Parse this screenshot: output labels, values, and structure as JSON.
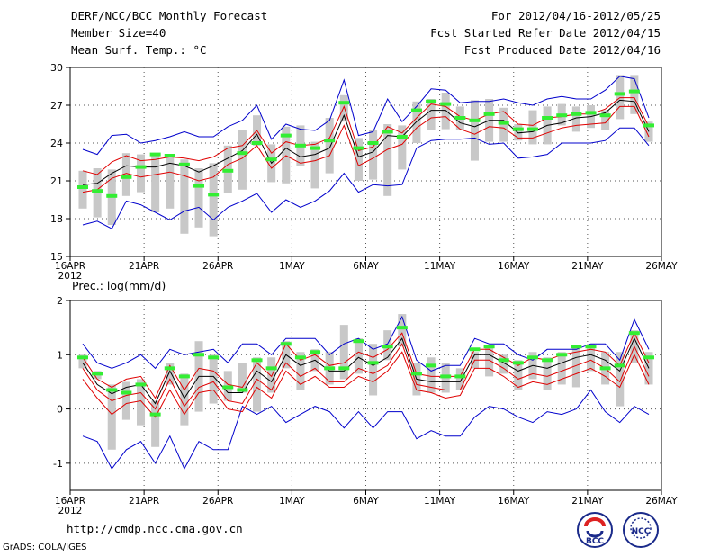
{
  "header": {
    "title": "DERF/NCC/BCC Monthly Forecast",
    "member_size": "Member Size=40",
    "variable1": "Mean Surf. Temp.: °C",
    "period": "For 2012/04/16-2012/05/25",
    "started": "Fcst Started Refer Date 2012/04/15",
    "produced": "Fcst Produced Date 2012/04/16"
  },
  "footer": {
    "url": "http://cmdp.ncc.cma.gov.cn",
    "grads": "GrADS: COLA/IGES",
    "logo_bcc": "BCC",
    "logo_ncc": "NCC"
  },
  "colors": {
    "blue": "#0000cc",
    "red": "#e00000",
    "black": "#000000",
    "green": "#33ee33",
    "box": "#c8c8c8",
    "grid": "#555555"
  },
  "chart_data": [
    {
      "type": "line",
      "title": "Mean Surf. Temp.: °C",
      "xlabel_year": "2012",
      "x_ticks": [
        "16APR",
        "21APR",
        "26APR",
        "1MAY",
        "6MAY",
        "11MAY",
        "16MAY",
        "21MAY",
        "26MAY"
      ],
      "ylim": [
        15,
        30
      ],
      "y_ticks": [
        15,
        18,
        21,
        24,
        27,
        30
      ],
      "series": [
        {
          "name": "max",
          "color": "blue",
          "values": [
            23.5,
            23.1,
            24.6,
            24.7,
            24.0,
            24.2,
            24.5,
            24.9,
            24.5,
            24.5,
            25.3,
            25.8,
            27.0,
            24.3,
            25.5,
            25.1,
            25.0,
            25.8,
            29.0,
            24.6,
            24.9,
            27.5,
            25.7,
            26.9,
            28.3,
            28.2,
            27.2,
            27.3,
            27.3,
            27.5,
            27.2,
            27.0,
            27.5,
            27.7,
            27.5,
            27.5,
            28.2,
            29.3,
            29.1,
            26.0
          ]
        },
        {
          "name": "upper",
          "color": "red",
          "values": [
            21.8,
            21.5,
            22.5,
            23.0,
            22.6,
            22.7,
            22.9,
            22.8,
            22.6,
            22.9,
            23.6,
            23.8,
            25.0,
            23.2,
            24.1,
            23.8,
            23.9,
            24.4,
            26.9,
            23.4,
            23.7,
            25.3,
            24.8,
            26.0,
            27.1,
            26.9,
            26.1,
            25.8,
            26.3,
            26.5,
            25.5,
            25.4,
            26.0,
            26.1,
            26.3,
            26.3,
            26.7,
            27.6,
            27.6,
            25.3
          ]
        },
        {
          "name": "mean",
          "color": "black",
          "values": [
            20.7,
            20.8,
            21.6,
            22.2,
            22.1,
            22.1,
            22.4,
            22.2,
            21.7,
            22.2,
            22.8,
            23.4,
            24.7,
            22.4,
            23.6,
            22.9,
            23.1,
            23.6,
            26.2,
            22.9,
            23.3,
            24.6,
            24.5,
            25.7,
            26.6,
            26.6,
            25.6,
            25.3,
            25.8,
            25.8,
            24.8,
            24.9,
            25.4,
            25.6,
            26.0,
            26.1,
            26.4,
            27.4,
            27.3,
            24.9
          ]
        },
        {
          "name": "lower",
          "color": "red",
          "values": [
            20.1,
            20.3,
            21.2,
            21.6,
            21.3,
            21.5,
            21.7,
            21.4,
            21.0,
            21.3,
            22.3,
            22.8,
            23.8,
            22.0,
            23.0,
            22.4,
            22.6,
            23.0,
            25.4,
            22.2,
            22.8,
            23.5,
            23.9,
            25.2,
            26.0,
            26.1,
            25.1,
            24.7,
            25.3,
            25.2,
            24.4,
            24.4,
            24.8,
            25.2,
            25.4,
            25.5,
            25.6,
            26.9,
            26.9,
            24.5
          ]
        },
        {
          "name": "min",
          "color": "blue",
          "values": [
            17.5,
            17.8,
            17.2,
            19.4,
            19.1,
            18.5,
            17.9,
            18.6,
            18.9,
            17.9,
            18.9,
            19.4,
            20.0,
            18.5,
            19.5,
            18.9,
            19.4,
            20.2,
            21.6,
            20.1,
            20.7,
            20.6,
            20.7,
            23.6,
            24.2,
            24.3,
            24.3,
            24.4,
            23.9,
            24.0,
            22.8,
            22.9,
            23.1,
            24.0,
            24.0,
            24.0,
            24.2,
            25.2,
            25.2,
            23.8
          ]
        }
      ],
      "box_low": [
        18.8,
        18.1,
        17.5,
        19.8,
        20.1,
        18.5,
        18.8,
        16.8,
        17.3,
        16.6,
        20.0,
        20.3,
        23.8,
        20.9,
        20.8,
        22.2,
        20.4,
        21.6,
        25.7,
        21.0,
        21.1,
        19.8,
        21.9,
        24.0,
        25.0,
        25.1,
        25.0,
        22.6,
        24.1,
        24.1,
        24.2,
        23.9,
        23.9,
        25.4,
        24.9,
        25.2,
        25.0,
        25.9,
        26.3,
        24.1
      ],
      "box_high": [
        21.8,
        22.0,
        21.9,
        23.2,
        23.1,
        23.2,
        23.0,
        22.7,
        22.0,
        22.4,
        23.8,
        25.0,
        26.2,
        23.9,
        25.3,
        25.4,
        24.1,
        26.0,
        27.8,
        24.4,
        25.0,
        25.5,
        25.4,
        27.3,
        27.5,
        28.0,
        26.9,
        27.4,
        27.5,
        26.8,
        25.5,
        26.6,
        26.9,
        27.1,
        26.9,
        27.0,
        26.6,
        29.4,
        29.4,
        25.7
      ],
      "control": [
        20.5,
        20.2,
        19.8,
        21.3,
        22.1,
        23.1,
        23.0,
        22.3,
        20.6,
        19.9,
        21.8,
        23.2,
        24.0,
        22.7,
        24.6,
        23.8,
        23.6,
        24.2,
        27.2,
        23.6,
        24.0,
        24.9,
        24.5,
        26.6,
        27.3,
        27.1,
        26.0,
        25.8,
        26.3,
        25.6,
        25.1,
        25.1,
        26.0,
        26.2,
        26.3,
        26.4,
        26.2,
        27.9,
        28.1,
        25.4
      ]
    },
    {
      "type": "line",
      "title": "Prec.: log(mm/d)",
      "xlabel_year": "2012",
      "x_ticks": [
        "16APR",
        "21APR",
        "26APR",
        "1MAY",
        "6MAY",
        "11MAY",
        "16MAY",
        "21MAY",
        "26MAY"
      ],
      "ylim": [
        -1.5,
        2.0
      ],
      "y_ticks": [
        -1,
        0,
        1,
        2
      ],
      "series": [
        {
          "name": "max",
          "color": "blue",
          "values": [
            1.2,
            0.85,
            0.75,
            0.85,
            1.0,
            0.75,
            1.1,
            1.0,
            1.05,
            1.1,
            0.85,
            1.2,
            1.2,
            1.0,
            1.3,
            1.3,
            1.3,
            1.0,
            1.2,
            1.3,
            1.1,
            1.2,
            1.7,
            0.9,
            0.7,
            0.8,
            0.8,
            1.3,
            1.2,
            1.2,
            1.0,
            0.9,
            1.1,
            1.1,
            1.1,
            1.2,
            1.2,
            0.9,
            1.65,
            1.1
          ]
        },
        {
          "name": "upper",
          "color": "red",
          "values": [
            0.95,
            0.55,
            0.4,
            0.55,
            0.6,
            0.2,
            0.8,
            0.35,
            0.75,
            0.7,
            0.45,
            0.4,
            0.85,
            0.6,
            1.2,
            0.9,
            1.0,
            0.8,
            0.85,
            1.05,
            0.95,
            1.1,
            1.4,
            0.65,
            0.6,
            0.6,
            0.6,
            1.1,
            1.1,
            0.95,
            0.8,
            0.95,
            0.9,
            1.0,
            1.05,
            1.1,
            1.05,
            0.8,
            1.4,
            0.85
          ]
        },
        {
          "name": "mean",
          "color": "black",
          "values": [
            0.85,
            0.45,
            0.28,
            0.4,
            0.45,
            0.1,
            0.7,
            0.2,
            0.6,
            0.6,
            0.3,
            0.3,
            0.7,
            0.5,
            1.0,
            0.8,
            0.9,
            0.7,
            0.7,
            0.95,
            0.8,
            0.95,
            1.3,
            0.55,
            0.5,
            0.5,
            0.5,
            1.0,
            1.0,
            0.85,
            0.7,
            0.8,
            0.75,
            0.85,
            0.95,
            1.0,
            0.9,
            0.7,
            1.3,
            0.75
          ]
        },
        {
          "name": "lower",
          "color": "red",
          "values": [
            0.75,
            0.35,
            0.15,
            0.25,
            0.3,
            0.0,
            0.55,
            0.05,
            0.4,
            0.5,
            0.15,
            0.1,
            0.55,
            0.35,
            0.85,
            0.6,
            0.75,
            0.5,
            0.5,
            0.75,
            0.65,
            0.8,
            1.2,
            0.45,
            0.4,
            0.35,
            0.35,
            0.9,
            0.9,
            0.75,
            0.55,
            0.65,
            0.6,
            0.7,
            0.8,
            0.9,
            0.75,
            0.5,
            1.15,
            0.6
          ]
        },
        {
          "name": "min",
          "color": "blue",
          "values": [
            -0.5,
            -0.6,
            -1.1,
            -0.75,
            -0.6,
            -1.0,
            -0.5,
            -1.1,
            -0.6,
            -0.75,
            -0.75,
            0.05,
            -0.1,
            0.05,
            -0.25,
            -0.1,
            0.05,
            -0.05,
            -0.35,
            -0.05,
            -0.35,
            -0.05,
            -0.05,
            -0.55,
            -0.4,
            -0.5,
            -0.5,
            -0.15,
            0.05,
            0.0,
            -0.15,
            -0.25,
            -0.05,
            -0.1,
            0.0,
            0.35,
            -0.05,
            -0.25,
            0.05,
            -0.1
          ]
        },
        {
          "name": "lower_aux",
          "color": "red",
          "values": [
            0.55,
            0.2,
            -0.1,
            0.1,
            0.15,
            -0.15,
            0.35,
            -0.1,
            0.3,
            0.35,
            0.0,
            -0.05,
            0.4,
            0.2,
            0.7,
            0.45,
            0.6,
            0.4,
            0.4,
            0.6,
            0.5,
            0.7,
            1.05,
            0.35,
            0.3,
            0.2,
            0.25,
            0.75,
            0.75,
            0.6,
            0.4,
            0.5,
            0.45,
            0.55,
            0.65,
            0.75,
            0.6,
            0.4,
            1.0,
            0.45
          ]
        }
      ],
      "box_low": [
        0.75,
        0.55,
        -0.75,
        -0.2,
        -0.3,
        -0.7,
        0.45,
        -0.3,
        -0.05,
        0.1,
        0.15,
        0.3,
        -0.05,
        0.3,
        0.75,
        0.35,
        0.7,
        0.45,
        0.55,
        0.65,
        0.25,
        0.9,
        1.15,
        0.25,
        0.3,
        0.3,
        0.35,
        0.75,
        0.6,
        0.65,
        0.35,
        0.55,
        0.35,
        0.45,
        0.4,
        0.7,
        0.45,
        0.05,
        0.85,
        0.45
      ],
      "box_high": [
        1.0,
        0.7,
        0.45,
        0.5,
        0.55,
        0.15,
        0.85,
        0.65,
        1.25,
        1.0,
        0.7,
        0.85,
        0.95,
        0.95,
        1.25,
        1.05,
        1.1,
        1.05,
        1.55,
        1.3,
        1.2,
        1.45,
        1.75,
        0.85,
        0.95,
        0.85,
        0.75,
        1.05,
        1.15,
        1.0,
        0.9,
        1.05,
        0.95,
        1.05,
        1.15,
        1.2,
        1.05,
        1.05,
        1.45,
        1.05
      ],
      "control": [
        0.95,
        0.65,
        0.35,
        0.3,
        0.45,
        -0.1,
        0.75,
        0.6,
        1.0,
        0.95,
        0.4,
        0.35,
        0.9,
        0.75,
        1.2,
        0.95,
        1.05,
        0.75,
        0.75,
        1.25,
        0.85,
        1.15,
        1.5,
        0.65,
        0.8,
        0.6,
        0.6,
        1.1,
        1.15,
        0.9,
        0.85,
        0.95,
        0.9,
        1.0,
        1.15,
        1.15,
        0.75,
        0.8,
        1.4,
        0.95
      ]
    }
  ]
}
